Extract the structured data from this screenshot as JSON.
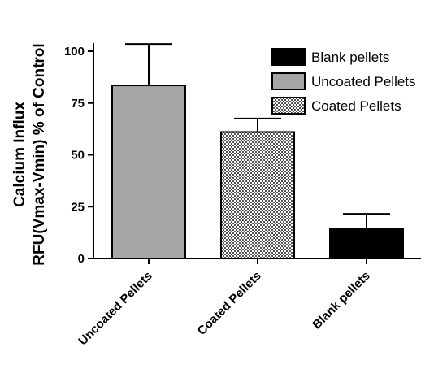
{
  "chart_data": {
    "type": "bar",
    "title": "",
    "xlabel": "",
    "ylabel_lines": [
      "Calcium Influx",
      "RFU(Vmax-Vmin) % of Control"
    ],
    "ylim": [
      0,
      100
    ],
    "yticks": [
      "0",
      "25",
      "50",
      "75",
      "100"
    ],
    "ytick_values": [
      0,
      25,
      50,
      75,
      100
    ],
    "categories": [
      "Uncoated Pellets",
      "Coated Pellets",
      "Blank pellets"
    ],
    "values": [
      83.5,
      61,
      14.5
    ],
    "errors": [
      20,
      6.5,
      7
    ],
    "bar_styles": [
      "uncoated",
      "coated",
      "blank"
    ],
    "legend": {
      "placement": "top-right",
      "entries": [
        {
          "label": "Blank pellets",
          "style": "blank"
        },
        {
          "label": "Uncoated Pellets",
          "style": "uncoated"
        },
        {
          "label": "Coated Pellets",
          "style": "coated"
        }
      ]
    },
    "colors": {
      "blank": "#000000",
      "uncoated": "#a6a6a6",
      "coated": "#ffffff"
    },
    "grid": false
  }
}
